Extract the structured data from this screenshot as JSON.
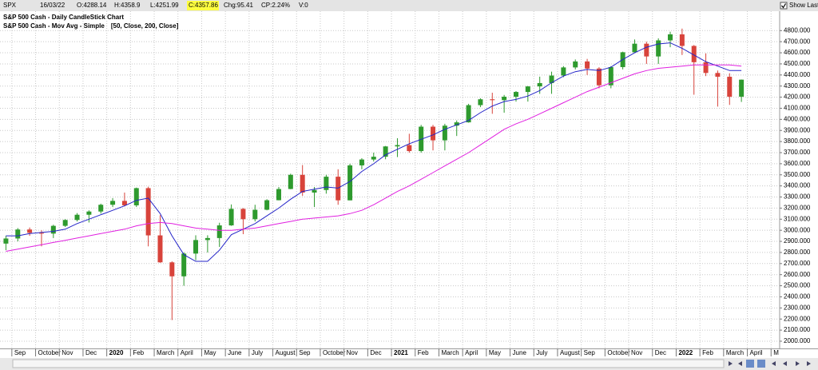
{
  "header": {
    "symbol": "SPX",
    "date": "16/03/22",
    "open": "O:4288.14",
    "high": "H:4358.9",
    "low": "L:4251.99",
    "close": "C:4357.86",
    "change": "Chg:95.41",
    "change_percent": "CP:2.24%",
    "volume": "V:0",
    "show_last": "Show Last"
  },
  "chart_data": {
    "type": "candlestick",
    "title": "S&P 500 Cash - Daily CandleStick Chart",
    "indicator": "S&P 500 Cash - Mov Avg - Simple",
    "legend_open": "[",
    "legend_separator": ", ",
    "legend_close": "]",
    "categories": [
      null,
      "Sep",
      null,
      "October",
      null,
      "Nov",
      null,
      "Dec",
      null,
      "2020",
      null,
      "Feb",
      null,
      "March",
      null,
      "April",
      null,
      "May",
      null,
      "June",
      null,
      "July",
      null,
      "August",
      null,
      "Sep",
      null,
      "October",
      null,
      "Nov",
      null,
      "Dec",
      null,
      "2021",
      null,
      "Feb",
      null,
      "March",
      null,
      "April",
      null,
      "May",
      null,
      "June",
      null,
      "July",
      null,
      "August",
      null,
      "Sep",
      null,
      "October",
      null,
      "Nov",
      null,
      "Dec",
      null,
      "2022",
      null,
      "Feb",
      null,
      "March",
      null,
      "April",
      null,
      "M"
    ],
    "open": [
      2880,
      2926,
      3007,
      2977,
      2970,
      3040,
      3093,
      3140,
      3169,
      3230,
      3265,
      3225,
      3380,
      2954,
      2711,
      2585,
      2790,
      2912,
      2930,
      3044,
      3193,
      3100,
      3185,
      3271,
      3372,
      3500,
      3340,
      3363,
      3483,
      3270,
      3585,
      3638,
      3663,
      3756,
      3768,
      3714,
      3934,
      3811,
      3943,
      3973,
      4128,
      4181,
      4173,
      4204,
      4247,
      4297,
      4327,
      4395,
      4468,
      4522,
      4458,
      4307,
      4471,
      4605,
      4682,
      4567,
      4712,
      4766,
      4662,
      4515,
      4418,
      4384,
      4204,
      null,
      null,
      null
    ],
    "high": [
      2950,
      3020,
      3025,
      3000,
      3050,
      3100,
      3155,
      3180,
      3240,
      3290,
      3340,
      3385,
      3393,
      3136,
      2720,
      2800,
      2955,
      2955,
      3068,
      3233,
      3200,
      3230,
      3280,
      3390,
      3510,
      3588,
      3390,
      3500,
      3550,
      3600,
      3650,
      3700,
      3760,
      3830,
      3870,
      3950,
      3950,
      3960,
      3990,
      4140,
      4190,
      4240,
      4220,
      4255,
      4300,
      4385,
      4430,
      4480,
      4540,
      4545,
      4470,
      4480,
      4610,
      4720,
      4700,
      4730,
      4790,
      4818,
      4670,
      4595,
      4440,
      4416,
      4358.9,
      null,
      null,
      null
    ],
    "low": [
      2820,
      2900,
      2950,
      2855,
      2930,
      3030,
      3080,
      3070,
      3150,
      3210,
      3215,
      3210,
      2855,
      2707,
      2191,
      2500,
      2730,
      2800,
      2850,
      3040,
      2965,
      3080,
      3180,
      3270,
      3370,
      3310,
      3210,
      3330,
      3230,
      3270,
      3550,
      3620,
      3640,
      3660,
      3700,
      3700,
      3720,
      3720,
      3850,
      3970,
      4110,
      4050,
      4060,
      4160,
      4160,
      4230,
      4230,
      4380,
      4450,
      4400,
      4280,
      4280,
      4450,
      4600,
      4500,
      4500,
      4650,
      4580,
      4222,
      4390,
      4115,
      4130,
      4157,
      null,
      null,
      null
    ],
    "close": [
      2926,
      3007,
      2977,
      2970,
      3040,
      3093,
      3140,
      3169,
      3230,
      3265,
      3225,
      3380,
      2954,
      2711,
      2585,
      2790,
      2912,
      2930,
      3044,
      3193,
      3100,
      3185,
      3271,
      3372,
      3500,
      3340,
      3363,
      3483,
      3270,
      3585,
      3638,
      3663,
      3756,
      3768,
      3714,
      3934,
      3811,
      3943,
      3973,
      4128,
      4181,
      4173,
      4204,
      4247,
      4297,
      4327,
      4395,
      4468,
      4522,
      4458,
      4307,
      4471,
      4605,
      4682,
      4567,
      4712,
      4766,
      4662,
      4515,
      4418,
      4384,
      4204,
      4357.86,
      null,
      null,
      null
    ],
    "up_color": "#2e9a2e",
    "down_color": "#d8433b",
    "series": [
      {
        "name": "50, Close",
        "color": "#2424c8",
        "values": [
          2950,
          2950,
          2970,
          2980,
          2990,
          3010,
          3060,
          3100,
          3140,
          3180,
          3220,
          3270,
          3290,
          3150,
          2950,
          2780,
          2720,
          2720,
          2820,
          2960,
          3010,
          3060,
          3130,
          3200,
          3280,
          3350,
          3370,
          3390,
          3380,
          3440,
          3530,
          3600,
          3680,
          3730,
          3780,
          3820,
          3860,
          3910,
          3950,
          3990,
          4060,
          4120,
          4160,
          4180,
          4210,
          4260,
          4330,
          4390,
          4430,
          4450,
          4440,
          4470,
          4540,
          4600,
          4650,
          4680,
          4690,
          4640,
          4580,
          4520,
          4480,
          4440,
          4440,
          null,
          null,
          null
        ]
      },
      {
        "name": "200, Close",
        "color": "#e020e0",
        "values": [
          2810,
          2830,
          2850,
          2870,
          2890,
          2910,
          2930,
          2950,
          2970,
          2990,
          3010,
          3040,
          3060,
          3070,
          3060,
          3040,
          3020,
          3010,
          3000,
          3000,
          3010,
          3020,
          3040,
          3060,
          3080,
          3100,
          3110,
          3120,
          3130,
          3150,
          3180,
          3230,
          3290,
          3350,
          3400,
          3460,
          3520,
          3580,
          3640,
          3700,
          3770,
          3840,
          3910,
          3960,
          4000,
          4050,
          4100,
          4150,
          4200,
          4250,
          4290,
          4330,
          4370,
          4410,
          4440,
          4460,
          4470,
          4480,
          4490,
          4490,
          4490,
          4490,
          4480,
          null,
          null,
          null
        ]
      }
    ],
    "ylim": [
      1935,
      4975
    ],
    "yticks": [
      {
        "value": 2000,
        "label": "2000.000"
      },
      {
        "value": 2100,
        "label": "2100.000"
      },
      {
        "value": 2200,
        "label": "2200.000"
      },
      {
        "value": 2300,
        "label": "2300.000"
      },
      {
        "value": 2400,
        "label": "2400.000"
      },
      {
        "value": 2500,
        "label": "2500.000"
      },
      {
        "value": 2600,
        "label": "2600.000"
      },
      {
        "value": 2700,
        "label": "2700.000"
      },
      {
        "value": 2800,
        "label": "2800.000"
      },
      {
        "value": 2900,
        "label": "2900.000"
      },
      {
        "value": 3000,
        "label": "3000.000"
      },
      {
        "value": 3100,
        "label": "3100.000"
      },
      {
        "value": 3200,
        "label": "3200.000"
      },
      {
        "value": 3300,
        "label": "3300.000"
      },
      {
        "value": 3400,
        "label": "3400.000"
      },
      {
        "value": 3500,
        "label": "3500.000"
      },
      {
        "value": 3600,
        "label": "3600.000"
      },
      {
        "value": 3700,
        "label": "3700.000"
      },
      {
        "value": 3800,
        "label": "3800.000"
      },
      {
        "value": 3900,
        "label": "3900.000"
      },
      {
        "value": 4000,
        "label": "4000.000"
      },
      {
        "value": 4100,
        "label": "4100.000"
      },
      {
        "value": 4200,
        "label": "4200.000"
      },
      {
        "value": 4300,
        "label": "4300.000"
      },
      {
        "value": 4400,
        "label": "4400.000"
      },
      {
        "value": 4500,
        "label": "4500.000"
      },
      {
        "value": 4600,
        "label": "4600.000"
      },
      {
        "value": 4700,
        "label": "4700.000"
      },
      {
        "value": 4800,
        "label": "4800.000"
      }
    ],
    "grid": true
  }
}
